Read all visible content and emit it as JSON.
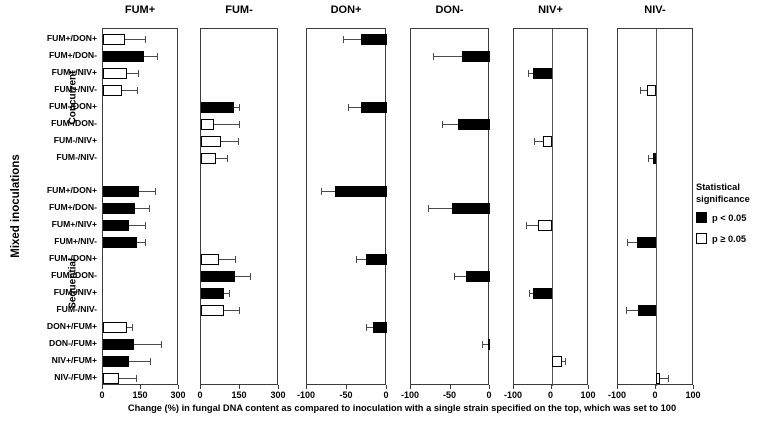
{
  "chart_data": {
    "type": "bar",
    "orientation": "horizontal",
    "caption": "Change (%) in fungal DNA content as compared to inoculation with a single strain specified on the top, which was set to 100",
    "y_axis_label": "Mixed inoculations",
    "groups": [
      {
        "label": "Concurrent",
        "row_start": 0,
        "row_end": 7
      },
      {
        "label": "Sequential",
        "row_start": 8,
        "row_end": 19
      }
    ],
    "row_labels": [
      "FUM+/DON+",
      "FUM+/DON-",
      "FUM+/NIV+",
      "FUM+/NIV-",
      "FUM-/DON+",
      "FUM-/DON-",
      "FUM-/NIV+",
      "FUM-/NIV-",
      "FUM+/DON+",
      "FUM+/DON-",
      "FUM+/NIV+",
      "FUM+/NIV-",
      "FUM-/DON+",
      "FUM-/DON-",
      "FUM-/NIV+",
      "FUM-/NIV-",
      "DON+/FUM+",
      "DON-/FUM+",
      "NIV+/FUM+",
      "NIV-/FUM+"
    ],
    "legend": {
      "title": "Statistical significance",
      "items": [
        {
          "label": "p < 0.05",
          "significant": true
        },
        {
          "label": "p ≥ 0.05",
          "significant": false
        }
      ]
    },
    "colors": {
      "significant": "#000000",
      "not_significant": "#ffffff",
      "bar_border": "#000000",
      "error_bar": "#4a4a4a"
    },
    "panels": [
      {
        "title": "FUM+",
        "xlim": [
          0,
          300
        ],
        "ticks": [
          0,
          150,
          300
        ],
        "zero_line_inside": false,
        "bars": [
          {
            "row": 0,
            "value": 85,
            "error_to": 165,
            "significant": false
          },
          {
            "row": 1,
            "value": 160,
            "error_to": 215,
            "significant": true
          },
          {
            "row": 2,
            "value": 93,
            "error_to": 140,
            "significant": false
          },
          {
            "row": 3,
            "value": 76,
            "error_to": 134,
            "significant": false
          },
          {
            "row": 8,
            "value": 142,
            "error_to": 207,
            "significant": true
          },
          {
            "row": 9,
            "value": 126,
            "error_to": 182,
            "significant": true
          },
          {
            "row": 10,
            "value": 101,
            "error_to": 166,
            "significant": true
          },
          {
            "row": 11,
            "value": 134,
            "error_to": 166,
            "significant": true
          },
          {
            "row": 16,
            "value": 93,
            "error_to": 114,
            "significant": false
          },
          {
            "row": 17,
            "value": 122,
            "error_to": 227,
            "significant": true
          },
          {
            "row": 18,
            "value": 101,
            "error_to": 186,
            "significant": true
          },
          {
            "row": 19,
            "value": 65,
            "error_to": 130,
            "significant": false
          }
        ]
      },
      {
        "title": "FUM-",
        "xlim": [
          0,
          300
        ],
        "ticks": [
          0,
          150,
          300
        ],
        "zero_line_inside": false,
        "bars": [
          {
            "row": 4,
            "value": 126,
            "error_to": 146,
            "significant": true
          },
          {
            "row": 5,
            "value": 50,
            "error_to": 145,
            "significant": false
          },
          {
            "row": 6,
            "value": 77,
            "error_to": 141,
            "significant": false
          },
          {
            "row": 7,
            "value": 58,
            "error_to": 99,
            "significant": false
          },
          {
            "row": 12,
            "value": 68,
            "error_to": 131,
            "significant": false
          },
          {
            "row": 13,
            "value": 131,
            "error_to": 188,
            "significant": true
          },
          {
            "row": 14,
            "value": 89,
            "error_to": 107,
            "significant": true
          },
          {
            "row": 15,
            "value": 87,
            "error_to": 145,
            "significant": false
          }
        ]
      },
      {
        "title": "DON+",
        "xlim": [
          -100,
          0
        ],
        "ticks": [
          -100,
          -50,
          0
        ],
        "zero_line_inside": false,
        "bars": [
          {
            "row": 0,
            "value": -33,
            "error_to": -55,
            "significant": true
          },
          {
            "row": 4,
            "value": -32,
            "error_to": -49,
            "significant": true
          },
          {
            "row": 8,
            "value": -65,
            "error_to": -82,
            "significant": true
          },
          {
            "row": 12,
            "value": -26,
            "error_to": -39,
            "significant": true
          },
          {
            "row": 16,
            "value": -17,
            "error_to": -26,
            "significant": true
          }
        ]
      },
      {
        "title": "DON-",
        "xlim": [
          -100,
          0
        ],
        "ticks": [
          -100,
          -50,
          0
        ],
        "zero_line_inside": false,
        "bars": [
          {
            "row": 1,
            "value": -36,
            "error_to": -72,
            "significant": true
          },
          {
            "row": 5,
            "value": -41,
            "error_to": -61,
            "significant": true
          },
          {
            "row": 9,
            "value": -48,
            "error_to": -78,
            "significant": true
          },
          {
            "row": 13,
            "value": -30,
            "error_to": -45,
            "significant": true
          },
          {
            "row": 17,
            "value": -3,
            "error_to": -10,
            "significant": true
          }
        ]
      },
      {
        "title": "NIV+",
        "xlim": [
          -100,
          100
        ],
        "ticks": [
          -100,
          0,
          100
        ],
        "zero_line_inside": true,
        "bars": [
          {
            "row": 2,
            "value": -49,
            "error_to": -63,
            "significant": true
          },
          {
            "row": 6,
            "value": -22,
            "error_to": -47,
            "significant": false
          },
          {
            "row": 10,
            "value": -36,
            "error_to": -68,
            "significant": false
          },
          {
            "row": 14,
            "value": -49,
            "error_to": -59,
            "significant": true
          },
          {
            "row": 18,
            "value": 27,
            "error_to": 36,
            "significant": false
          }
        ]
      },
      {
        "title": "NIV-",
        "xlim": [
          -100,
          100
        ],
        "ticks": [
          -100,
          0,
          100
        ],
        "zero_line_inside": true,
        "bars": [
          {
            "row": 3,
            "value": -24,
            "error_to": -42,
            "significant": false
          },
          {
            "row": 7,
            "value": -8,
            "error_to": -20,
            "significant": true
          },
          {
            "row": 11,
            "value": -50,
            "error_to": -76,
            "significant": true
          },
          {
            "row": 15,
            "value": -48,
            "error_to": -79,
            "significant": true
          },
          {
            "row": 19,
            "value": 11,
            "error_to": 31,
            "significant": false
          }
        ]
      }
    ]
  }
}
